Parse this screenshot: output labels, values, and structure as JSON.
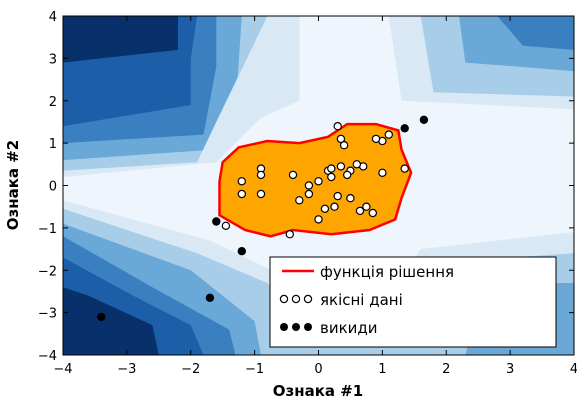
{
  "chart_data": {
    "type": "scatter",
    "title": "",
    "xlabel": "Ознака #1",
    "ylabel": "Ознака #2",
    "xlim": [
      -4,
      4
    ],
    "ylim": [
      -4,
      4
    ],
    "xticks": [
      "−4",
      "−3",
      "−2",
      "−1",
      "0",
      "1",
      "2",
      "3",
      "4"
    ],
    "yticks": [
      "−4",
      "−3",
      "−2",
      "−1",
      "0",
      "1",
      "2",
      "3",
      "4"
    ],
    "grid": false,
    "legend_position": "lower-right",
    "legend": {
      "decision": "функція рішення",
      "inliers": "якісні дані",
      "outliers": "викиди"
    },
    "colors": {
      "decision_fill": "#FFA500",
      "decision_line": "#FF0000",
      "contour_levels": [
        "#08306b",
        "#1c5ea8",
        "#3a7fc0",
        "#6aa8d8",
        "#a8cde8",
        "#d8e8f5",
        "#eef5fc"
      ]
    },
    "decision_boundary": [
      [
        -1.55,
        0.1
      ],
      [
        -1.5,
        0.55
      ],
      [
        -1.25,
        0.9
      ],
      [
        -0.8,
        1.05
      ],
      [
        -0.3,
        1.0
      ],
      [
        0.15,
        1.15
      ],
      [
        0.45,
        1.45
      ],
      [
        0.9,
        1.45
      ],
      [
        1.25,
        1.3
      ],
      [
        1.3,
        0.85
      ],
      [
        1.45,
        0.3
      ],
      [
        1.3,
        -0.3
      ],
      [
        1.2,
        -0.8
      ],
      [
        0.8,
        -1.05
      ],
      [
        0.2,
        -1.15
      ],
      [
        -0.4,
        -1.05
      ],
      [
        -0.75,
        -1.2
      ],
      [
        -1.15,
        -1.05
      ],
      [
        -1.55,
        -0.7
      ]
    ],
    "series": [
      {
        "name": "якісні дані",
        "x": [
          0.3,
          0.4,
          1.0,
          1.1,
          0.35,
          0.15,
          0.7,
          0.9,
          -0.9,
          0.2,
          0.6,
          0.5,
          0.2,
          0.45,
          0.35,
          -0.4,
          -0.15,
          0.0,
          -0.9,
          -1.2,
          -1.2,
          -0.9,
          -0.3,
          0.1,
          0.5,
          1.35,
          0.85,
          0.65,
          0.75,
          0.3,
          -0.15,
          0.0,
          -1.45,
          -0.45,
          1.0,
          0.25
        ],
        "y": [
          1.4,
          0.95,
          1.05,
          1.2,
          1.1,
          0.35,
          0.45,
          1.1,
          0.4,
          0.4,
          0.5,
          0.35,
          0.2,
          0.25,
          0.45,
          0.25,
          0.0,
          0.1,
          0.25,
          0.1,
          -0.2,
          -0.2,
          -0.35,
          -0.55,
          -0.3,
          0.4,
          -0.65,
          -0.6,
          -0.5,
          -0.25,
          -0.2,
          -0.8,
          -0.95,
          -1.15,
          0.3,
          -0.5
        ]
      },
      {
        "name": "викиди",
        "x": [
          -3.4,
          -1.7,
          -1.2,
          -1.6,
          1.35,
          1.65
        ],
        "y": [
          -3.1,
          -2.65,
          -1.55,
          -0.85,
          1.35,
          1.55
        ]
      }
    ]
  }
}
